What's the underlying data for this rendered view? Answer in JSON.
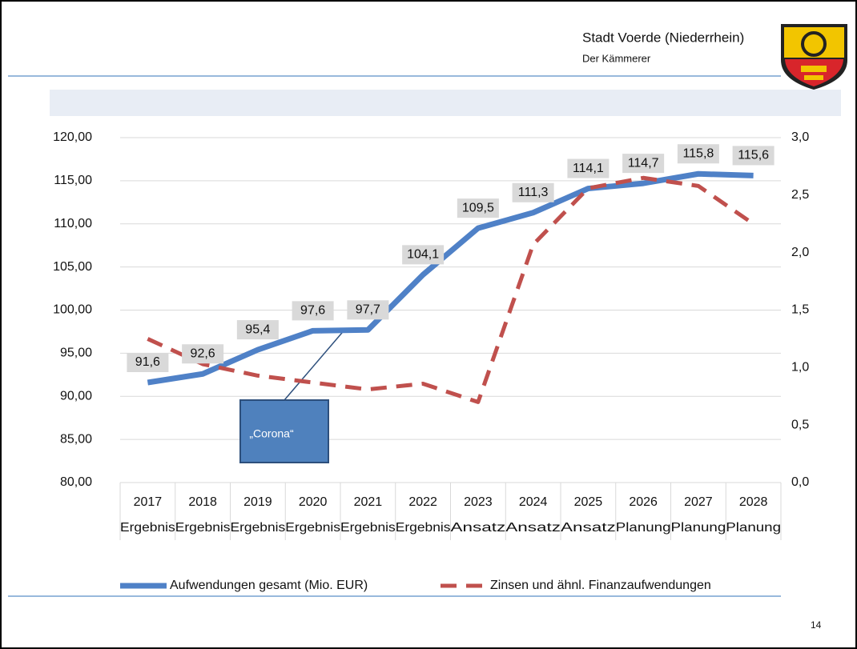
{
  "header": {
    "title": "Stadt Voerde (Niederrhein)",
    "subtitle": "Der Kämmerer"
  },
  "page_number": "14",
  "chart_data": {
    "type": "line",
    "categories": [
      "2017",
      "2018",
      "2019",
      "2020",
      "2021",
      "2022",
      "2023",
      "2024",
      "2025",
      "2026",
      "2027",
      "2028"
    ],
    "category_sublabels": [
      "Ergebnis",
      "Ergebnis",
      "Ergebnis",
      "Ergebnis",
      "Ergebnis",
      "Ergebnis",
      "Ansatz",
      "Ansatz",
      "Ansatz",
      "Planung",
      "Planung",
      "Planung"
    ],
    "series": [
      {
        "name": "Aufwendungen gesamt (Mio. EUR)",
        "color": "#4f81c7",
        "style": "solid",
        "values": [
          91.6,
          92.6,
          95.4,
          97.6,
          97.7,
          104.1,
          109.5,
          111.3,
          114.1,
          114.7,
          115.8,
          115.6
        ],
        "value_labels": [
          "91,6",
          "92,6",
          "95,4",
          "97,6",
          "97,7",
          "104,1",
          "109,5",
          "111,3",
          "114,1",
          "114,7",
          "115,8",
          "115,6"
        ]
      },
      {
        "name": "Zinsen und ähnl. Finanzaufwendungen",
        "color": "#c0504d",
        "style": "dashed",
        "axis": "y2",
        "values": [
          1.25,
          1.03,
          0.93,
          0.87,
          0.81,
          0.86,
          0.7,
          2.07,
          2.56,
          2.65,
          2.58,
          2.25
        ]
      }
    ],
    "ylim": [
      80,
      120
    ],
    "yticks": [
      {
        "value": 80,
        "label": "80,00"
      },
      {
        "value": 85,
        "label": "85,00"
      },
      {
        "value": 90,
        "label": "90,00"
      },
      {
        "value": 95,
        "label": "95,00"
      },
      {
        "value": 100,
        "label": "100,00"
      },
      {
        "value": 105,
        "label": "105,00"
      },
      {
        "value": 110,
        "label": "110,00"
      },
      {
        "value": 115,
        "label": "115,00"
      },
      {
        "value": 120,
        "label": "120,00"
      }
    ],
    "y2lim": [
      0,
      3
    ],
    "y2ticks": [
      {
        "value": 0,
        "label": "0,0"
      },
      {
        "value": 0.5,
        "label": "0,5"
      },
      {
        "value": 1,
        "label": "1,0"
      },
      {
        "value": 1.5,
        "label": "1,5"
      },
      {
        "value": 2,
        "label": "2,0"
      },
      {
        "value": 2.5,
        "label": "2,5"
      },
      {
        "value": 3,
        "label": "3,0"
      }
    ],
    "grid": true,
    "legend": "bottom",
    "annotation": "„Corona“"
  }
}
